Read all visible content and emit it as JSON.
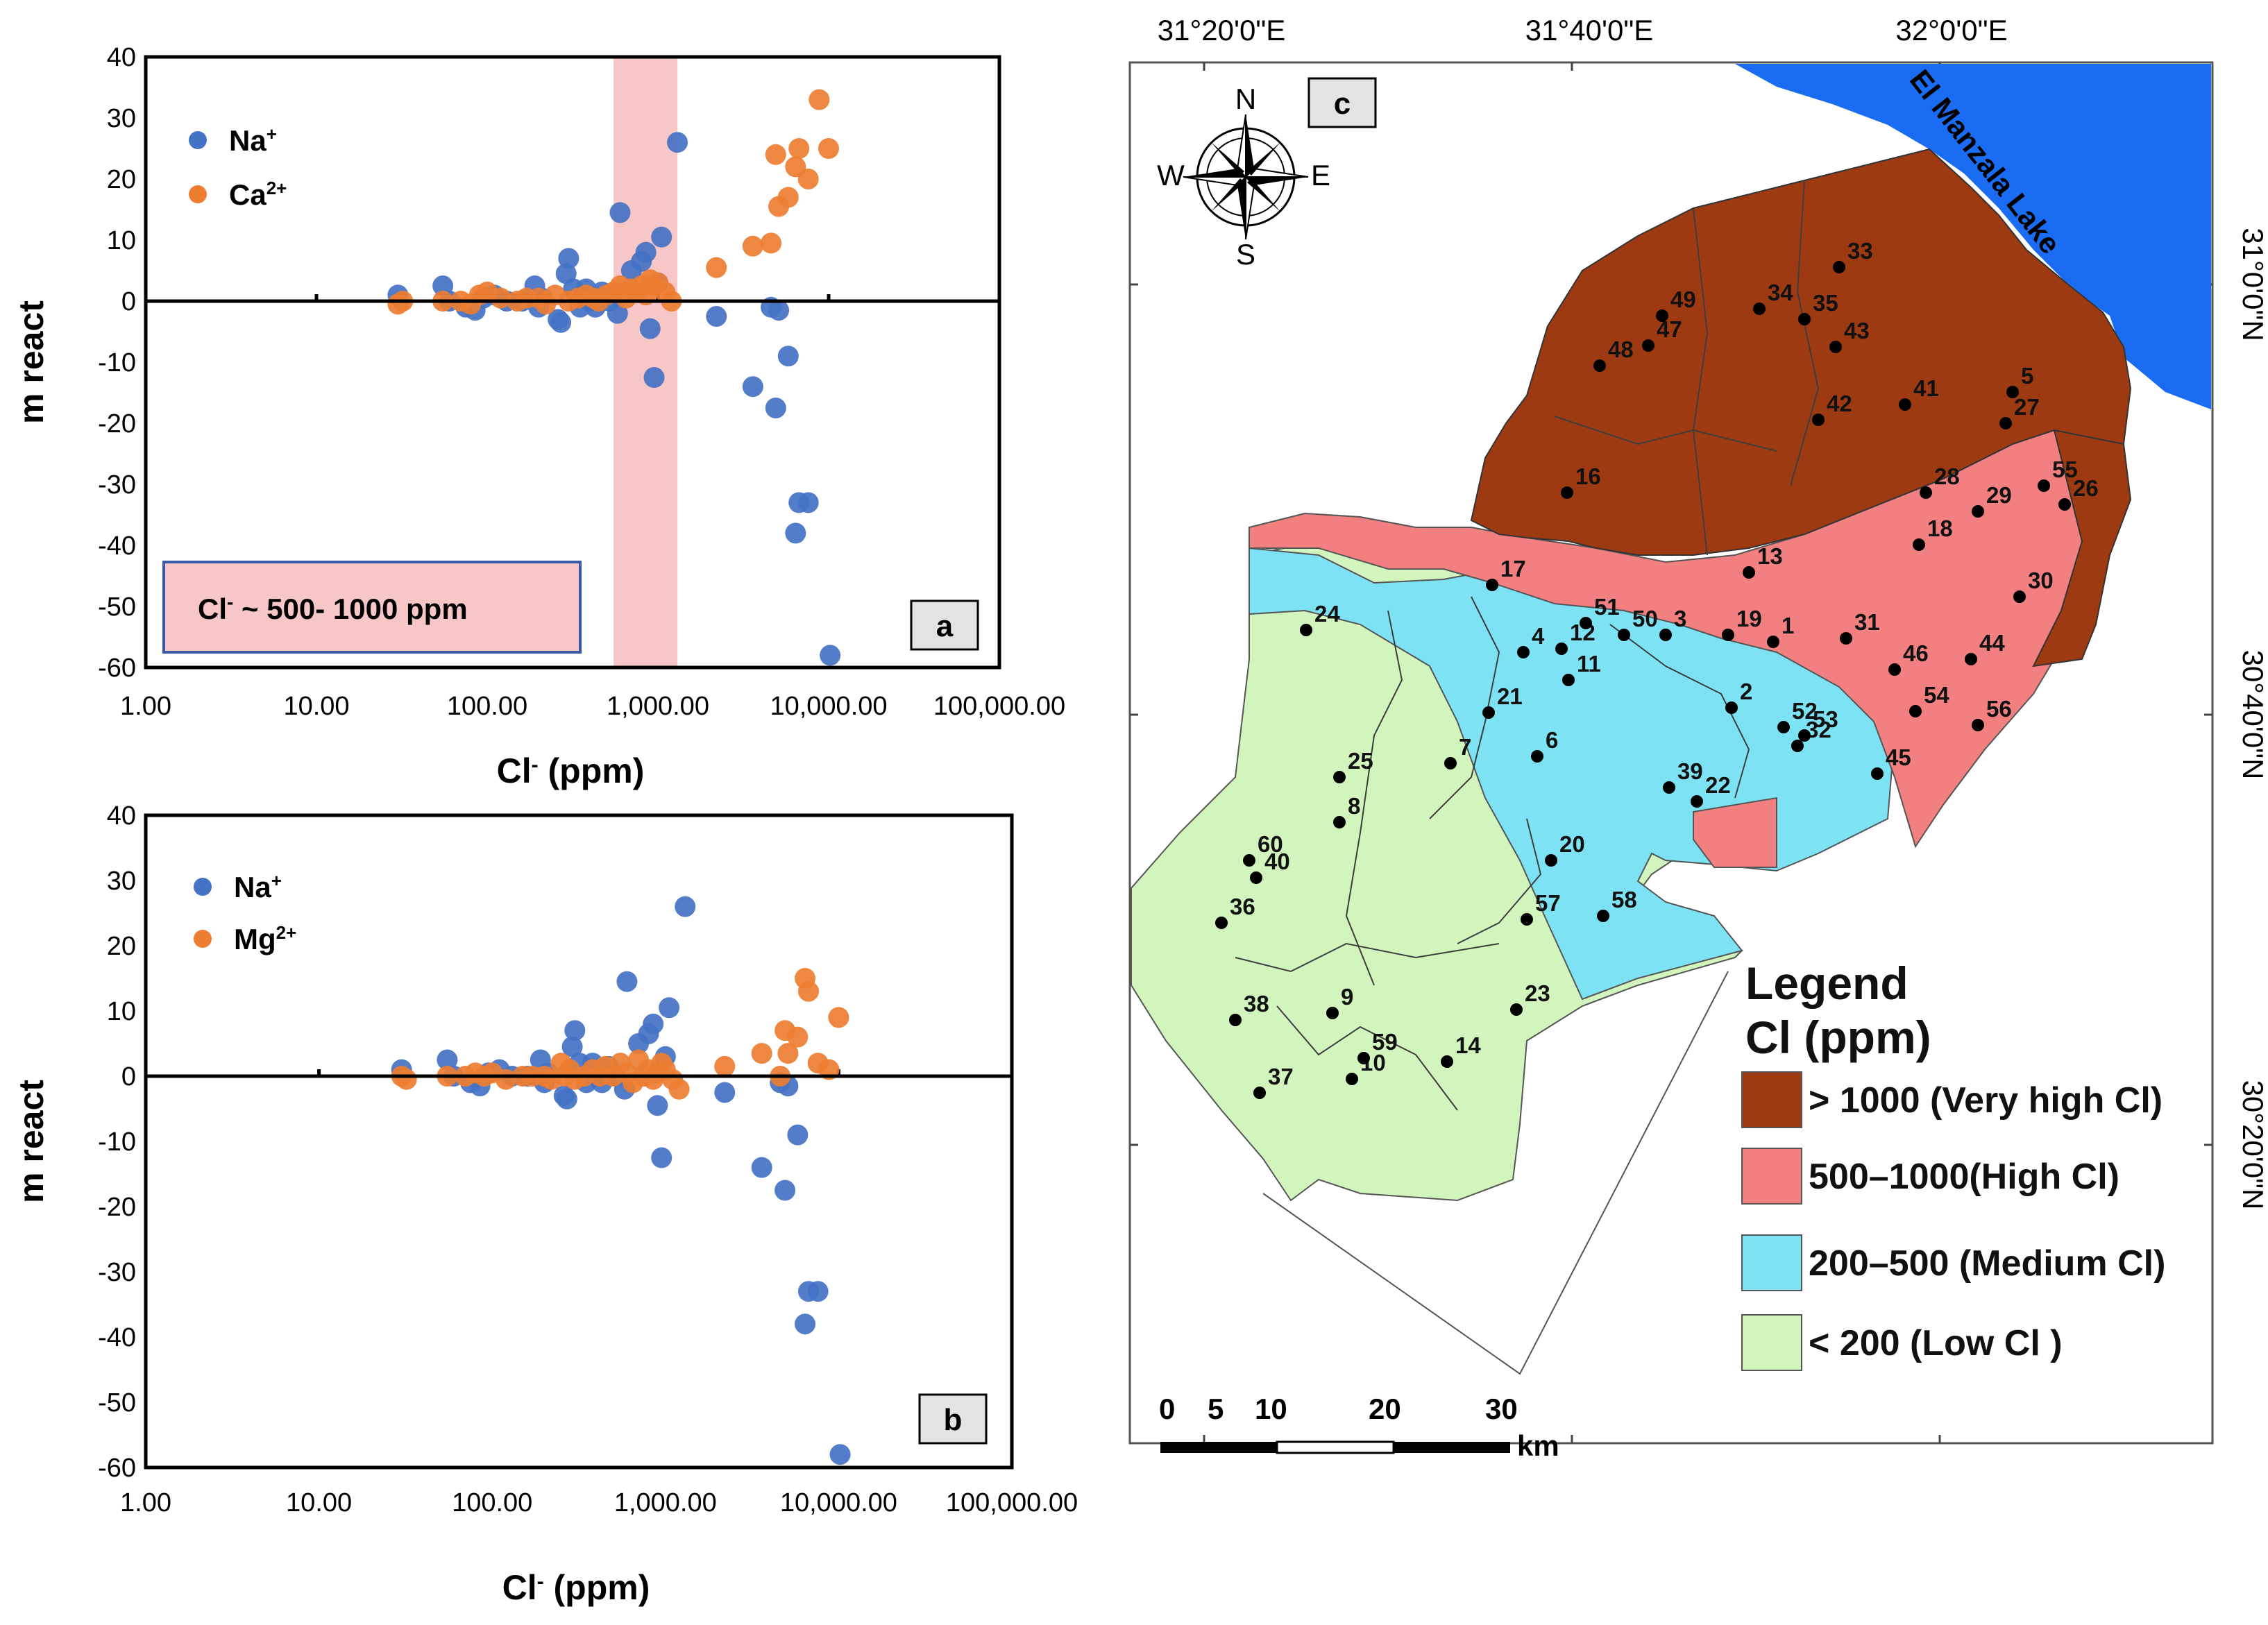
{
  "chart_data": [
    {
      "id": "a",
      "type": "scatter",
      "panel_label": "a",
      "xlabel": "Cl- (ppm)",
      "xlabel_main": "Cl",
      "xlabel_sup": "-",
      "xlabel_unit": " (ppm)",
      "ylabel": "m react",
      "x_scale": "log",
      "xlim": [
        1,
        100000
      ],
      "ylim": [
        -60,
        40
      ],
      "x_ticks": [
        "1.00",
        "10.00",
        "100.00",
        "1,000.00",
        "10,000.00",
        "100,000.00"
      ],
      "y_ticks": [
        "40",
        "30",
        "20",
        "10",
        "0",
        "-10",
        "-20",
        "-30",
        "-40",
        "-50",
        "-60"
      ],
      "highlight_band": {
        "x_range": [
          550,
          1300
        ],
        "color": "#f7c6c6"
      },
      "annotation": {
        "text": "Cl- ~ 500- 1000 ppm",
        "main": "Cl",
        "sup": "-",
        "rest": " ~ 500- 1000 ppm"
      },
      "legend": [
        {
          "label": "Na+",
          "main": "Na",
          "sup": "+",
          "color": "#4472c4"
        },
        {
          "label": "Ca2+",
          "main": "Ca",
          "sup": "2+",
          "color": "#ed7d31"
        }
      ],
      "series": [
        {
          "name": "Na+",
          "color": "#4472c4",
          "points": [
            [
              30,
              1
            ],
            [
              55,
              2.5
            ],
            [
              60,
              0
            ],
            [
              75,
              -1
            ],
            [
              85,
              -1.5
            ],
            [
              95,
              0.5
            ],
            [
              110,
              1
            ],
            [
              130,
              0
            ],
            [
              160,
              0
            ],
            [
              190,
              2.5
            ],
            [
              200,
              -1
            ],
            [
              210,
              0.5
            ],
            [
              260,
              -3
            ],
            [
              270,
              -3.5
            ],
            [
              290,
              4.5
            ],
            [
              300,
              7
            ],
            [
              320,
              2
            ],
            [
              350,
              -1
            ],
            [
              380,
              2
            ],
            [
              400,
              0
            ],
            [
              430,
              -1
            ],
            [
              470,
              1.5
            ],
            [
              520,
              0
            ],
            [
              580,
              -2
            ],
            [
              600,
              14.5
            ],
            [
              700,
              5
            ],
            [
              800,
              6.5
            ],
            [
              850,
              8
            ],
            [
              900,
              -4.5
            ],
            [
              950,
              -12.5
            ],
            [
              1000,
              3
            ],
            [
              1050,
              10.5
            ],
            [
              1300,
              26
            ],
            [
              2200,
              -2.5
            ],
            [
              3600,
              -14
            ],
            [
              4600,
              -1
            ],
            [
              4900,
              -17.5
            ],
            [
              5100,
              -1.5
            ],
            [
              5800,
              -9
            ],
            [
              6400,
              -38
            ],
            [
              6700,
              -33
            ],
            [
              7600,
              -33
            ],
            [
              10200,
              -58
            ]
          ]
        },
        {
          "name": "Ca2+",
          "color": "#ed7d31",
          "points": [
            [
              30,
              -0.5
            ],
            [
              32,
              0
            ],
            [
              55,
              0
            ],
            [
              70,
              0
            ],
            [
              80,
              -0.5
            ],
            [
              90,
              1
            ],
            [
              100,
              1.5
            ],
            [
              120,
              0.5
            ],
            [
              150,
              0
            ],
            [
              170,
              0.5
            ],
            [
              200,
              0.5
            ],
            [
              220,
              -0.5
            ],
            [
              250,
              1
            ],
            [
              300,
              0
            ],
            [
              340,
              0.5
            ],
            [
              380,
              1
            ],
            [
              420,
              0.5
            ],
            [
              450,
              0
            ],
            [
              500,
              1
            ],
            [
              550,
              1.5
            ],
            [
              600,
              2.5
            ],
            [
              650,
              0.5
            ],
            [
              700,
              2
            ],
            [
              750,
              1.5
            ],
            [
              800,
              2.5
            ],
            [
              850,
              1
            ],
            [
              900,
              3.5
            ],
            [
              950,
              2.5
            ],
            [
              1000,
              3
            ],
            [
              1100,
              1.5
            ],
            [
              1200,
              0
            ],
            [
              2200,
              5.5
            ],
            [
              3600,
              9
            ],
            [
              4600,
              9.5
            ],
            [
              4900,
              24
            ],
            [
              5100,
              15.5
            ],
            [
              5800,
              17
            ],
            [
              6400,
              22
            ],
            [
              6700,
              25
            ],
            [
              7600,
              20
            ],
            [
              8800,
              33
            ],
            [
              10000,
              25
            ]
          ]
        }
      ]
    },
    {
      "id": "b",
      "type": "scatter",
      "panel_label": "b",
      "xlabel": "Cl- (ppm)",
      "xlabel_main": "Cl",
      "xlabel_sup": "-",
      "xlabel_unit": " (ppm)",
      "ylabel": "m react",
      "x_scale": "log",
      "xlim": [
        1,
        100000
      ],
      "ylim": [
        -60,
        40
      ],
      "x_ticks": [
        "1.00",
        "10.00",
        "100.00",
        "1,000.00",
        "10,000.00",
        "100,000.00"
      ],
      "y_ticks": [
        "40",
        "30",
        "20",
        "10",
        "0",
        "-10",
        "-20",
        "-30",
        "-40",
        "-50",
        "-60"
      ],
      "legend": [
        {
          "label": "Na+",
          "main": "Na",
          "sup": "+",
          "color": "#4472c4"
        },
        {
          "label": "Mg2+",
          "main": "Mg",
          "sup": "2+",
          "color": "#ed7d31"
        }
      ],
      "series": [
        {
          "name": "Na+",
          "color": "#4472c4",
          "points": [
            [
              30,
              1
            ],
            [
              55,
              2.5
            ],
            [
              60,
              0
            ],
            [
              75,
              -1
            ],
            [
              85,
              -1.5
            ],
            [
              95,
              0.5
            ],
            [
              110,
              1
            ],
            [
              130,
              0
            ],
            [
              160,
              0
            ],
            [
              190,
              2.5
            ],
            [
              200,
              -1
            ],
            [
              210,
              0.5
            ],
            [
              260,
              -3
            ],
            [
              270,
              -3.5
            ],
            [
              290,
              4.5
            ],
            [
              300,
              7
            ],
            [
              320,
              2
            ],
            [
              350,
              -1
            ],
            [
              380,
              2
            ],
            [
              400,
              0
            ],
            [
              430,
              -1
            ],
            [
              470,
              1.5
            ],
            [
              520,
              0
            ],
            [
              580,
              -2
            ],
            [
              600,
              14.5
            ],
            [
              700,
              5
            ],
            [
              800,
              6.5
            ],
            [
              850,
              8
            ],
            [
              900,
              -4.5
            ],
            [
              950,
              -12.5
            ],
            [
              1000,
              3
            ],
            [
              1050,
              10.5
            ],
            [
              1300,
              26
            ],
            [
              2200,
              -2.5
            ],
            [
              3600,
              -14
            ],
            [
              4600,
              -1
            ],
            [
              4900,
              -17.5
            ],
            [
              5100,
              -1.5
            ],
            [
              5800,
              -9
            ],
            [
              6400,
              -38
            ],
            [
              6700,
              -33
            ],
            [
              7600,
              -33
            ],
            [
              10200,
              -58
            ]
          ]
        },
        {
          "name": "Mg2+",
          "color": "#ed7d31",
          "points": [
            [
              30,
              0
            ],
            [
              32,
              -0.5
            ],
            [
              55,
              0
            ],
            [
              70,
              0
            ],
            [
              80,
              0.5
            ],
            [
              90,
              0
            ],
            [
              100,
              0.5
            ],
            [
              120,
              -0.5
            ],
            [
              150,
              0
            ],
            [
              170,
              0
            ],
            [
              200,
              0
            ],
            [
              220,
              -0.5
            ],
            [
              250,
              2
            ],
            [
              260,
              0
            ],
            [
              280,
              1
            ],
            [
              300,
              -0.5
            ],
            [
              340,
              0
            ],
            [
              380,
              1
            ],
            [
              420,
              0
            ],
            [
              450,
              1.5
            ],
            [
              500,
              0
            ],
            [
              550,
              2
            ],
            [
              600,
              0.5
            ],
            [
              650,
              -1
            ],
            [
              700,
              2.5
            ],
            [
              750,
              0
            ],
            [
              800,
              1
            ],
            [
              850,
              -0.5
            ],
            [
              900,
              0.5
            ],
            [
              950,
              2
            ],
            [
              1000,
              1
            ],
            [
              1100,
              -0.5
            ],
            [
              1200,
              -2
            ],
            [
              2200,
              1.5
            ],
            [
              3600,
              3.5
            ],
            [
              4600,
              0
            ],
            [
              4900,
              7
            ],
            [
              5100,
              3.5
            ],
            [
              5800,
              6
            ],
            [
              6400,
              15
            ],
            [
              6700,
              13
            ],
            [
              7600,
              2
            ],
            [
              8800,
              1
            ],
            [
              10000,
              9
            ]
          ]
        }
      ]
    }
  ],
  "map": {
    "panel_label": "c",
    "top_labels": [
      "31°20'0\"E",
      "31°40'0\"E",
      "32°0'0\"E"
    ],
    "right_labels": [
      "31°0'0\"N",
      "30°40'0\"N",
      "30°20'0\"N"
    ],
    "lake_label": "El Manzala Lake",
    "compass": {
      "n": "N",
      "s": "S",
      "e": "E",
      "w": "W"
    },
    "scale_labels": [
      "0",
      "5",
      "10",
      "20",
      "30"
    ],
    "scale_unit": "km",
    "legend_title_1": "Legend",
    "legend_title_2": "Cl (ppm)",
    "legend": [
      {
        "label": "> 1000 (Very high Cl)",
        "color": "#9e3a12"
      },
      {
        "label": "500–1000(High Cl)",
        "color": "#f28080"
      },
      {
        "label": "200–500 (Medium Cl)",
        "color": "#7de3f4"
      },
      {
        "label": "< 200 (Low Cl )",
        "color": "#d2f5be"
      }
    ],
    "sites": [
      "1",
      "2",
      "3",
      "4",
      "5",
      "6",
      "7",
      "8",
      "9",
      "10",
      "11",
      "12",
      "13",
      "14",
      "16",
      "17",
      "18",
      "19",
      "20",
      "21",
      "22",
      "23",
      "24",
      "25",
      "26",
      "27",
      "28",
      "29",
      "30",
      "31",
      "32",
      "33",
      "34",
      "35",
      "36",
      "37",
      "38",
      "39",
      "40",
      "41",
      "42",
      "43",
      "44",
      "45",
      "46",
      "47",
      "48",
      "49",
      "50",
      "51",
      "52",
      "53",
      "54",
      "55",
      "56",
      "57",
      "58",
      "59",
      "60"
    ]
  }
}
